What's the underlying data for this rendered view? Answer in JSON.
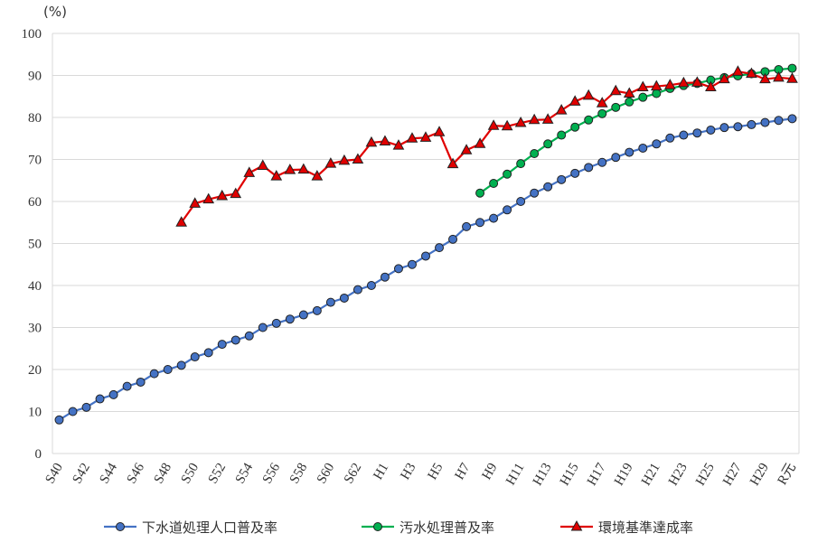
{
  "chart_data": {
    "type": "line",
    "y_label": "(%)",
    "categories": [
      "S40",
      null,
      "S42",
      null,
      "S44",
      null,
      "S46",
      null,
      "S48",
      null,
      "S50",
      null,
      "S52",
      null,
      "S54",
      null,
      "S56",
      null,
      "S58",
      null,
      "S60",
      null,
      "S62",
      null,
      "H1",
      null,
      "H3",
      null,
      "H5",
      null,
      "H7",
      null,
      "H9",
      null,
      "H11",
      null,
      "H13",
      null,
      "H15",
      null,
      "H17",
      null,
      "H19",
      null,
      "H21",
      null,
      "H23",
      null,
      "H25",
      null,
      "H27",
      null,
      "H29",
      null,
      "R元"
    ],
    "series": [
      {
        "name": "下水道処理人口普及率",
        "color": "#4472c4",
        "marker": "circle",
        "values": [
          8,
          10,
          11,
          13,
          14,
          16,
          17,
          19,
          20,
          21,
          23,
          24,
          26,
          27,
          28,
          30,
          31,
          32,
          33,
          34,
          36,
          37,
          39,
          40,
          42,
          44,
          45,
          47,
          49,
          51,
          54,
          55,
          56,
          58,
          60,
          62,
          63.5,
          65.2,
          66.7,
          68.1,
          69.3,
          70.5,
          71.7,
          72.7,
          73.7,
          75.1,
          75.8,
          76.3,
          77.0,
          77.6,
          77.8,
          78.3,
          78.8,
          79.3,
          79.7
        ]
      },
      {
        "name": "汚水処理普及率",
        "color": "#00b050",
        "marker": "circle",
        "values": [
          null,
          null,
          null,
          null,
          null,
          null,
          null,
          null,
          null,
          null,
          null,
          null,
          null,
          null,
          null,
          null,
          null,
          null,
          null,
          null,
          null,
          null,
          null,
          null,
          null,
          null,
          null,
          null,
          null,
          null,
          null,
          62,
          64.3,
          66.5,
          69,
          71.4,
          73.7,
          75.8,
          77.7,
          79.4,
          80.9,
          82.4,
          83.7,
          84.8,
          85.7,
          86.9,
          87.6,
          88.1,
          88.9,
          89.5,
          89.9,
          90.4,
          90.9,
          91.4,
          91.7
        ]
      },
      {
        "name": "環境基準達成率",
        "color": "#e00000",
        "marker": "triangle",
        "values": [
          null,
          null,
          null,
          null,
          null,
          null,
          null,
          null,
          null,
          55,
          59.5,
          60.5,
          61.3,
          61.8,
          66.8,
          68.5,
          66,
          67.5,
          67.6,
          66,
          69,
          69.7,
          70,
          74,
          74.3,
          73.3,
          75,
          75.2,
          76.5,
          68.9,
          72.2,
          73.7,
          78,
          77.9,
          78.7,
          79.4,
          79.5,
          81.7,
          83.8,
          85.2,
          83.4,
          86.3,
          85.7,
          87.2,
          87.4,
          87.7,
          88.2,
          88.3,
          87.2,
          89.1,
          90.9,
          90.4,
          89.1,
          89.5,
          89.2
        ]
      }
    ],
    "ylim": [
      0,
      100
    ],
    "yticks": [
      0,
      10,
      20,
      30,
      40,
      50,
      60,
      70,
      80,
      90,
      100
    ],
    "grid": true,
    "legend": "bottom"
  }
}
